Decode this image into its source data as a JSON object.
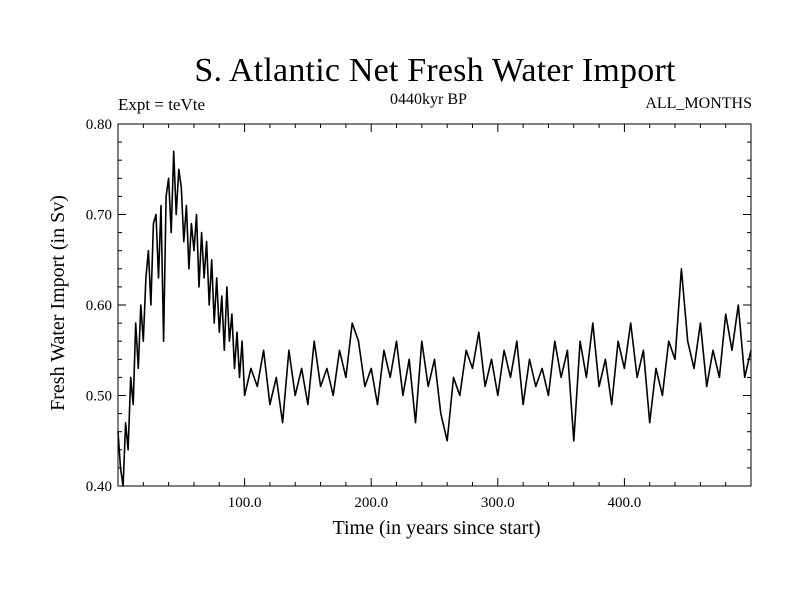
{
  "chart_data": {
    "type": "line",
    "title": "S. Atlantic Net Fresh Water Import",
    "subtitle": "0440kyr BP",
    "expt_label": "Expt = teVte",
    "months_label": "ALL_MONTHS",
    "xlabel": "Time (in years since start)",
    "ylabel": "Fresh Water Import (in Sv)",
    "xlim": [
      0,
      500
    ],
    "ylim": [
      0.4,
      0.8
    ],
    "x_ticks": [
      {
        "value": 100,
        "label": "100.0"
      },
      {
        "value": 200,
        "label": "200.0"
      },
      {
        "value": 300,
        "label": "300.0"
      },
      {
        "value": 400,
        "label": "400.0"
      }
    ],
    "y_ticks": [
      {
        "value": 0.4,
        "label": "0.40"
      },
      {
        "value": 0.5,
        "label": "0.50"
      },
      {
        "value": 0.6,
        "label": "0.60"
      },
      {
        "value": 0.7,
        "label": "0.70"
      },
      {
        "value": 0.8,
        "label": "0.80"
      }
    ],
    "series": [
      {
        "name": "Fresh Water Import",
        "x": [
          0,
          2,
          4,
          6,
          8,
          10,
          12,
          14,
          16,
          18,
          20,
          22,
          24,
          26,
          28,
          30,
          32,
          34,
          36,
          38,
          40,
          42,
          44,
          46,
          48,
          50,
          52,
          54,
          56,
          58,
          60,
          62,
          64,
          66,
          68,
          70,
          72,
          74,
          76,
          78,
          80,
          82,
          84,
          86,
          88,
          90,
          92,
          94,
          96,
          98,
          100,
          105,
          110,
          115,
          120,
          125,
          130,
          135,
          140,
          145,
          150,
          155,
          160,
          165,
          170,
          175,
          180,
          185,
          190,
          195,
          200,
          205,
          210,
          215,
          220,
          225,
          230,
          235,
          240,
          245,
          250,
          255,
          260,
          265,
          270,
          275,
          280,
          285,
          290,
          295,
          300,
          305,
          310,
          315,
          320,
          325,
          330,
          335,
          340,
          345,
          350,
          355,
          360,
          365,
          370,
          375,
          380,
          385,
          390,
          395,
          400,
          405,
          410,
          415,
          420,
          425,
          430,
          435,
          440,
          445,
          450,
          455,
          460,
          465,
          470,
          475,
          480,
          485,
          490,
          495,
          500
        ],
        "values": [
          0.46,
          0.42,
          0.4,
          0.47,
          0.44,
          0.52,
          0.49,
          0.58,
          0.53,
          0.6,
          0.56,
          0.63,
          0.66,
          0.6,
          0.69,
          0.7,
          0.63,
          0.71,
          0.56,
          0.72,
          0.74,
          0.68,
          0.77,
          0.7,
          0.75,
          0.73,
          0.67,
          0.71,
          0.64,
          0.69,
          0.66,
          0.7,
          0.62,
          0.68,
          0.63,
          0.67,
          0.6,
          0.65,
          0.58,
          0.63,
          0.57,
          0.61,
          0.55,
          0.62,
          0.56,
          0.59,
          0.53,
          0.57,
          0.52,
          0.56,
          0.5,
          0.53,
          0.51,
          0.55,
          0.49,
          0.52,
          0.47,
          0.55,
          0.5,
          0.53,
          0.49,
          0.56,
          0.51,
          0.53,
          0.5,
          0.55,
          0.52,
          0.58,
          0.56,
          0.51,
          0.53,
          0.49,
          0.55,
          0.52,
          0.56,
          0.5,
          0.54,
          0.47,
          0.56,
          0.51,
          0.54,
          0.48,
          0.45,
          0.52,
          0.5,
          0.55,
          0.53,
          0.57,
          0.51,
          0.54,
          0.5,
          0.55,
          0.52,
          0.56,
          0.49,
          0.54,
          0.51,
          0.53,
          0.5,
          0.56,
          0.52,
          0.55,
          0.45,
          0.56,
          0.52,
          0.58,
          0.51,
          0.54,
          0.49,
          0.56,
          0.53,
          0.58,
          0.52,
          0.55,
          0.47,
          0.53,
          0.5,
          0.56,
          0.54,
          0.64,
          0.56,
          0.53,
          0.58,
          0.51,
          0.55,
          0.52,
          0.59,
          0.55,
          0.6,
          0.52,
          0.55
        ]
      }
    ]
  }
}
